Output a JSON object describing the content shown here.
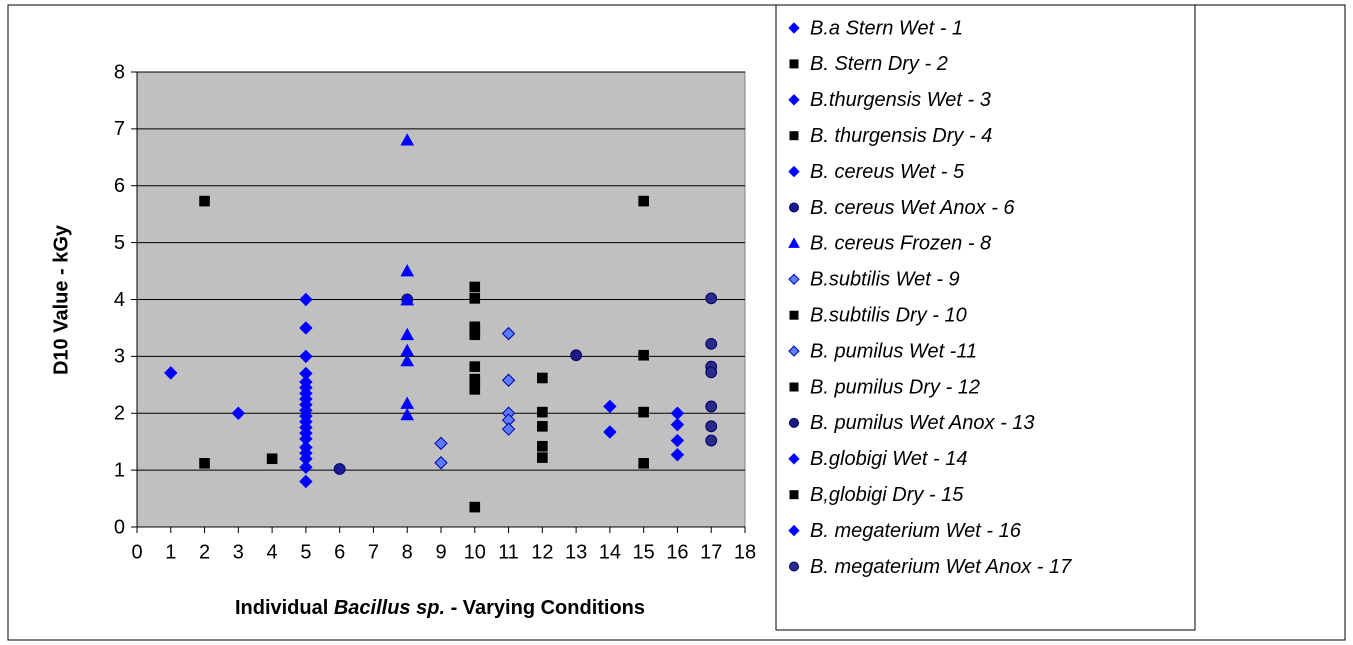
{
  "chart_data": {
    "type": "scatter",
    "ylabel": "D10 Value - kGy",
    "xlabel_parts": [
      "Individual ",
      "Bacillus sp.",
      " - Varying Conditions"
    ],
    "xlim": [
      0,
      18
    ],
    "xticks": [
      0,
      1,
      2,
      3,
      4,
      5,
      6,
      7,
      8,
      9,
      10,
      11,
      12,
      13,
      14,
      15,
      16,
      17,
      18
    ],
    "ylim": [
      0,
      8
    ],
    "yticks": [
      0,
      1,
      2,
      3,
      4,
      5,
      6,
      7,
      8
    ],
    "grid": true,
    "plot_background": "#c0c0c0",
    "legend": "right",
    "series": [
      {
        "name": "B.a Stern Wet - 1",
        "color": "#0000ff",
        "marker": "diamond",
        "x": [
          1
        ],
        "values": [
          2.71
        ]
      },
      {
        "name": "B. Stern Dry - 2",
        "color": "#000000",
        "marker": "square",
        "x": [
          2,
          2
        ],
        "values": [
          5.73,
          1.12
        ]
      },
      {
        "name": "B.thurgensis Wet - 3",
        "color": "#0000ff",
        "marker": "diamond",
        "x": [
          3
        ],
        "values": [
          2.0
        ]
      },
      {
        "name": "B. thurgensis Dry - 4",
        "color": "#000000",
        "marker": "square",
        "x": [
          4
        ],
        "values": [
          1.2
        ]
      },
      {
        "name": "B. cereus Wet - 5",
        "color": "#0000ff",
        "marker": "diamond",
        "x": [
          5,
          5,
          5,
          5,
          5,
          5,
          5,
          5,
          5,
          5,
          5,
          5,
          5,
          5,
          5,
          5,
          5,
          5,
          5,
          5
        ],
        "values": [
          4.0,
          3.5,
          3.0,
          2.7,
          2.55,
          2.45,
          2.35,
          2.25,
          2.15,
          2.05,
          1.95,
          1.85,
          1.75,
          1.65,
          1.55,
          1.4,
          1.3,
          1.2,
          1.05,
          0.8
        ]
      },
      {
        "name": "B. cereus Wet Anox - 6",
        "color": "#1a1a99",
        "marker": "circle",
        "x": [
          6,
          8
        ],
        "values": [
          1.02,
          4.0
        ]
      },
      {
        "name": "B. cereus Frozen - 8",
        "color": "#0000ff",
        "marker": "triangle",
        "x": [
          8,
          8,
          8,
          8,
          8,
          8,
          8,
          8
        ],
        "values": [
          6.8,
          4.5,
          3.99,
          3.38,
          3.1,
          2.92,
          2.17,
          1.97
        ]
      },
      {
        "name": "B.subtilis Wet - 9",
        "color": "#5a7cff",
        "marker": "diamond",
        "x": [
          9,
          9
        ],
        "values": [
          1.47,
          1.13
        ]
      },
      {
        "name": "B.subtilis Dry - 10",
        "color": "#000000",
        "marker": "square",
        "x": [
          10,
          10,
          10,
          10,
          10,
          10,
          10,
          10,
          10,
          10
        ],
        "values": [
          4.22,
          4.02,
          3.52,
          3.45,
          3.38,
          2.82,
          2.6,
          2.52,
          2.42,
          0.35
        ]
      },
      {
        "name": "B. pumilus Wet -11",
        "color": "#5a7cff",
        "marker": "diamond",
        "x": [
          11,
          11,
          11,
          11,
          11
        ],
        "values": [
          3.4,
          2.58,
          2.0,
          1.88,
          1.72
        ]
      },
      {
        "name": "B. pumilus Dry - 12",
        "color": "#000000",
        "marker": "square",
        "x": [
          12,
          12,
          12,
          12,
          12
        ],
        "values": [
          2.62,
          2.02,
          1.77,
          1.42,
          1.22
        ]
      },
      {
        "name": "B. pumilus Wet Anox - 13",
        "color": "#1a1a80",
        "marker": "circle",
        "x": [
          13
        ],
        "values": [
          3.02
        ]
      },
      {
        "name": "B.globigi Wet - 14",
        "color": "#0000ff",
        "marker": "diamond",
        "x": [
          14,
          14
        ],
        "values": [
          2.12,
          1.67
        ]
      },
      {
        "name": "B,globigi Dry - 15",
        "color": "#000000",
        "marker": "square",
        "x": [
          15,
          15,
          15,
          15
        ],
        "values": [
          5.73,
          3.02,
          2.02,
          1.12
        ]
      },
      {
        "name": "B. megaterium Wet - 16",
        "color": "#0000ff",
        "marker": "diamond",
        "x": [
          16,
          16,
          16,
          16
        ],
        "values": [
          2.0,
          1.8,
          1.52,
          1.27
        ]
      },
      {
        "name": "B. megaterium Wet Anox - 17",
        "color": "#2a2a8a",
        "marker": "circle",
        "x": [
          17,
          17,
          17,
          17,
          17,
          17,
          17
        ],
        "values": [
          4.02,
          3.22,
          2.82,
          2.72,
          2.12,
          1.77,
          1.52
        ]
      }
    ]
  }
}
